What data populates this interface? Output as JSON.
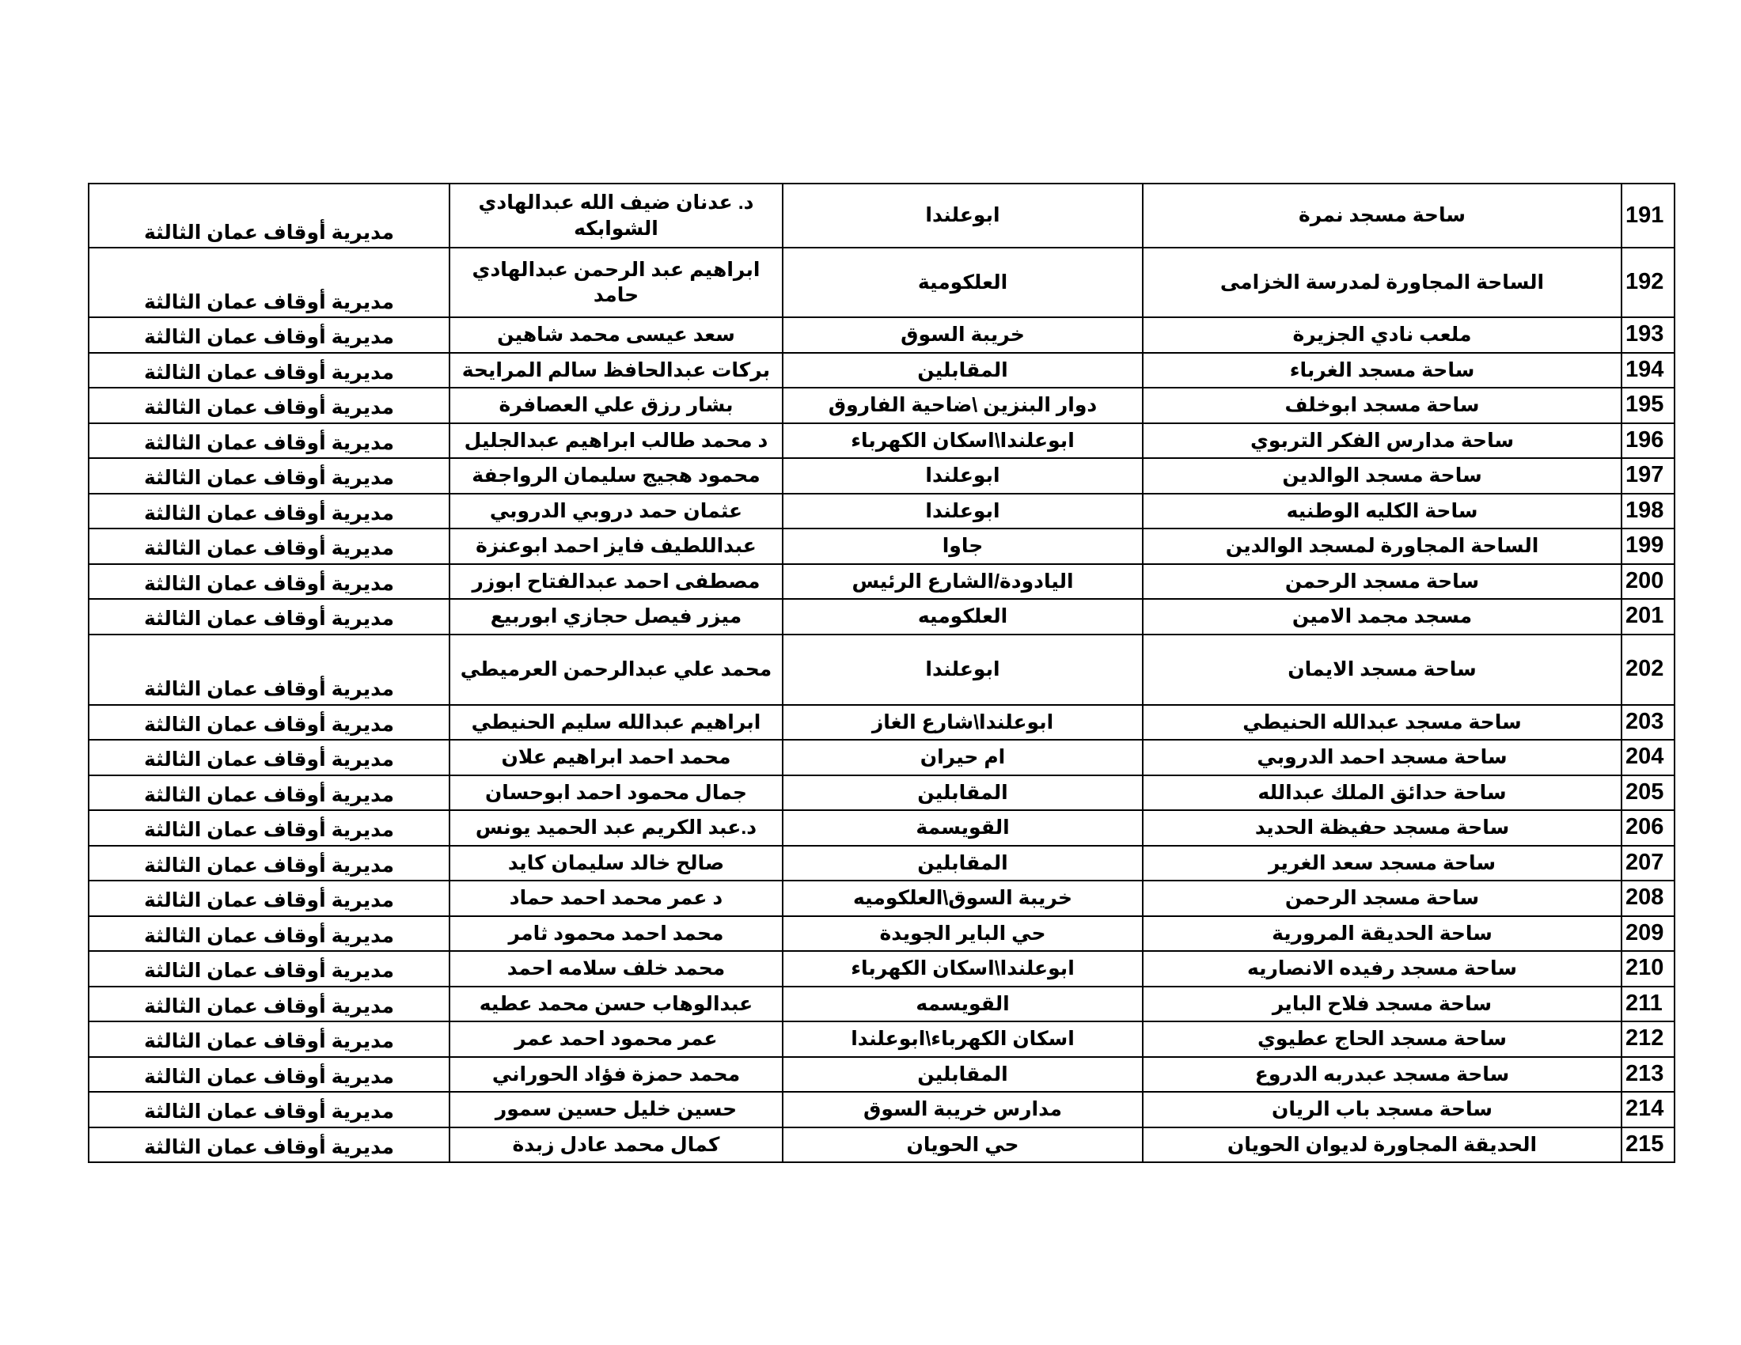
{
  "table": {
    "rows": [
      [
        "191",
        "ساحة مسجد نمرة",
        "ابوعلندا",
        "د. عدنان ضيف الله عبدالهادي الشوابكه",
        "مديرية أوقاف عمان الثالثة"
      ],
      [
        "192",
        "الساحة المجاورة لمدرسة الخزامى",
        "العلكومية",
        "ابراهيم عبد الرحمن عبدالهادي حامد",
        "مديرية أوقاف عمان الثالثة"
      ],
      [
        "193",
        "ملعب نادي الجزيرة",
        "خريبة السوق",
        "سعد عيسى محمد شاهين",
        "مديرية أوقاف عمان الثالثة"
      ],
      [
        "194",
        "ساحة مسجد الغرباء",
        "المقابلين",
        "بركات عبدالحافظ سالم المرايحة",
        "مديرية أوقاف عمان الثالثة"
      ],
      [
        "195",
        "ساحة مسجد ابوخلف",
        "دوار البنزين \\ضاحية الفاروق",
        "بشار  رزق علي العصافرة",
        "مديرية أوقاف عمان الثالثة"
      ],
      [
        "196",
        "ساحة مدارس الفكر التربوي",
        "ابوعلندا\\اسكان الكهرباء",
        "د محمد طالب ابراهيم عبدالجليل",
        "مديرية أوقاف عمان الثالثة"
      ],
      [
        "197",
        "ساحة مسجد الوالدين",
        "ابوعلندا",
        "محمود هجيج سليمان الرواجفة",
        "مديرية أوقاف عمان الثالثة"
      ],
      [
        "198",
        "ساحة الكليه الوطنيه",
        "ابوعلندا",
        "عثمان حمد دروبي الدروبي",
        "مديرية أوقاف عمان الثالثة"
      ],
      [
        "199",
        "الساحة المجاورة لمسجد الوالدين",
        "جاوا",
        "عبداللطيف فايز احمد ابوعنزة",
        "مديرية أوقاف عمان الثالثة"
      ],
      [
        "200",
        "ساحة مسجد الرحمن",
        "اليادودة/الشارع الرئيس",
        "مصطفى احمد عبدالفتاح ابوزر",
        "مديرية أوقاف عمان الثالثة"
      ],
      [
        "201",
        "مسجد مجمد الامين",
        "العلكوميه",
        "ميزر  فيصل حجازي ابوربيع",
        "مديرية أوقاف عمان الثالثة"
      ],
      [
        "202",
        "ساحة مسجد الايمان",
        "ابوعلندا",
        "محمد علي عبدالرحمن العرميطي",
        "مديرية أوقاف عمان الثالثة"
      ],
      [
        "203",
        "ساحة مسجد عبدالله الحنيطي",
        "ابوعلندا\\شارع الغاز",
        "ابراهيم عبدالله سليم الحنيطي",
        "مديرية أوقاف عمان الثالثة"
      ],
      [
        "204",
        "ساحة مسجد احمد الدروبي",
        "ام حيران",
        "محمد احمد ابراهيم علان",
        "مديرية أوقاف عمان الثالثة"
      ],
      [
        "205",
        "ساحة حدائق الملك عبدالله",
        "المقابلين",
        "جمال محمود احمد ابوحسان",
        "مديرية أوقاف عمان الثالثة"
      ],
      [
        "206",
        "ساحة مسجد حفيظة الحديد",
        "القويسمة",
        "د.عبد الكريم عبد الحميد يونس",
        "مديرية أوقاف عمان الثالثة"
      ],
      [
        "207",
        "ساحة مسجد سعد الغرير",
        "المقابلين",
        "صالح خالد سليمان كايد",
        "مديرية أوقاف عمان الثالثة"
      ],
      [
        "208",
        "ساحة مسجد الرحمن",
        "خريبة السوق\\العلكوميه",
        "د عمر محمد احمد حماد",
        "مديرية أوقاف عمان الثالثة"
      ],
      [
        "209",
        "ساحة الحديقة المرورية",
        "حي الباير الجويدة",
        "محمد احمد محمود ثامر",
        "مديرية أوقاف عمان الثالثة"
      ],
      [
        "210",
        "ساحة مسجد رفيده الانصاريه",
        "ابوعلندا\\اسكان الكهرباء",
        "محمد خلف سلامه احمد",
        "مديرية أوقاف عمان الثالثة"
      ],
      [
        "211",
        "ساحة مسجد فلاح الباير",
        "القويسمه",
        "عبدالوهاب حسن محمد عطيه",
        "مديرية أوقاف عمان الثالثة"
      ],
      [
        "212",
        "ساحة مسجد الحاج عطيوي",
        "اسكان الكهرباء\\ابوعلندا",
        "عمر محمود احمد عمر",
        "مديرية أوقاف عمان الثالثة"
      ],
      [
        "213",
        "ساحة مسجد عبدربه الدروع",
        "المقابلين",
        "محمد حمزة فؤاد الحوراني",
        "مديرية أوقاف عمان الثالثة"
      ],
      [
        "214",
        "ساحة مسجد باب الريان",
        "مدارس خريبة السوق",
        "حسين خليل حسين سمور",
        "مديرية أوقاف عمان الثالثة"
      ],
      [
        "215",
        "الحديقة المجاورة لديوان الحويان",
        "حي الحويان",
        "كمال محمد عادل  زبدة",
        "مديرية أوقاف عمان الثالثة"
      ]
    ]
  }
}
